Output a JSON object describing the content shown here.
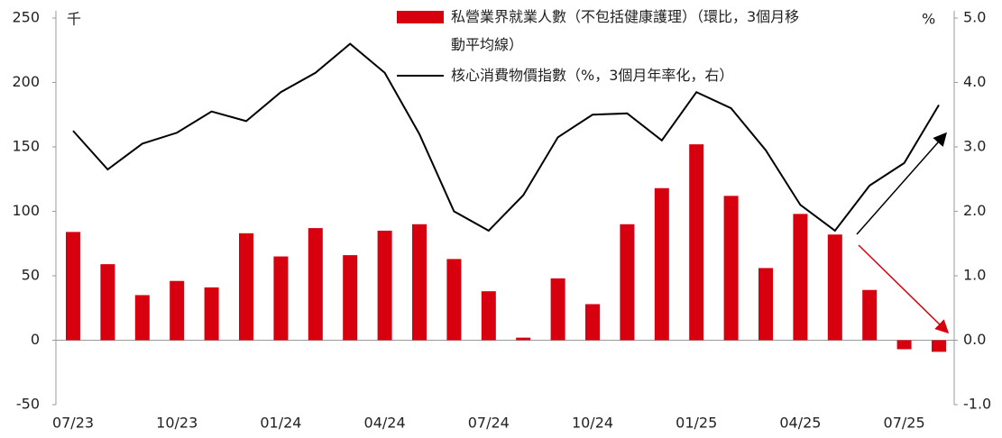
{
  "chart_data": {
    "type": "bar-line",
    "y_label": "千",
    "y2_label": "%",
    "categories": [
      "07/23",
      null,
      null,
      "10/23",
      null,
      null,
      "01/24",
      null,
      null,
      "04/24",
      null,
      null,
      "07/24",
      null,
      null,
      "10/24",
      null,
      null,
      "01/25",
      null,
      null,
      "04/25",
      null,
      null,
      "07/25",
      null
    ],
    "series": [
      {
        "name": "私營業界就業人數（不包括健康護理）（環比，3個月移動平均線）",
        "color": "#d7000f",
        "kind": "bar",
        "values": [
          84,
          59,
          35,
          46,
          41,
          83,
          65,
          87,
          66,
          85,
          90,
          63,
          38,
          2,
          48,
          28,
          90,
          118,
          152,
          112,
          56,
          98,
          82,
          39,
          -7,
          -9
        ]
      },
      {
        "name": "核心消費物價指數（%，3個月年率化，右）",
        "color": "#000000",
        "kind": "line",
        "axis": "y2",
        "values": [
          3.25,
          2.65,
          3.05,
          3.22,
          3.55,
          3.4,
          3.85,
          4.15,
          4.6,
          4.15,
          3.2,
          2.0,
          1.7,
          2.25,
          3.15,
          3.5,
          3.52,
          3.1,
          3.85,
          3.6,
          2.95,
          2.1,
          1.7,
          2.4,
          2.75,
          3.65
        ]
      }
    ],
    "ylim": [
      -50,
      250
    ],
    "yticks": [
      -50,
      0,
      50,
      100,
      150,
      200,
      250
    ],
    "y2lim": [
      -1,
      5
    ],
    "y2ticks": [
      {
        "value": -1,
        "label": "-1.0"
      },
      {
        "value": 0,
        "label": "0.0"
      },
      {
        "value": 1,
        "label": "1.0"
      },
      {
        "value": 2,
        "label": "2.0"
      },
      {
        "value": 3,
        "label": "3.0"
      },
      {
        "value": 4,
        "label": "4.0"
      },
      {
        "value": 5,
        "label": "5.0"
      }
    ]
  }
}
